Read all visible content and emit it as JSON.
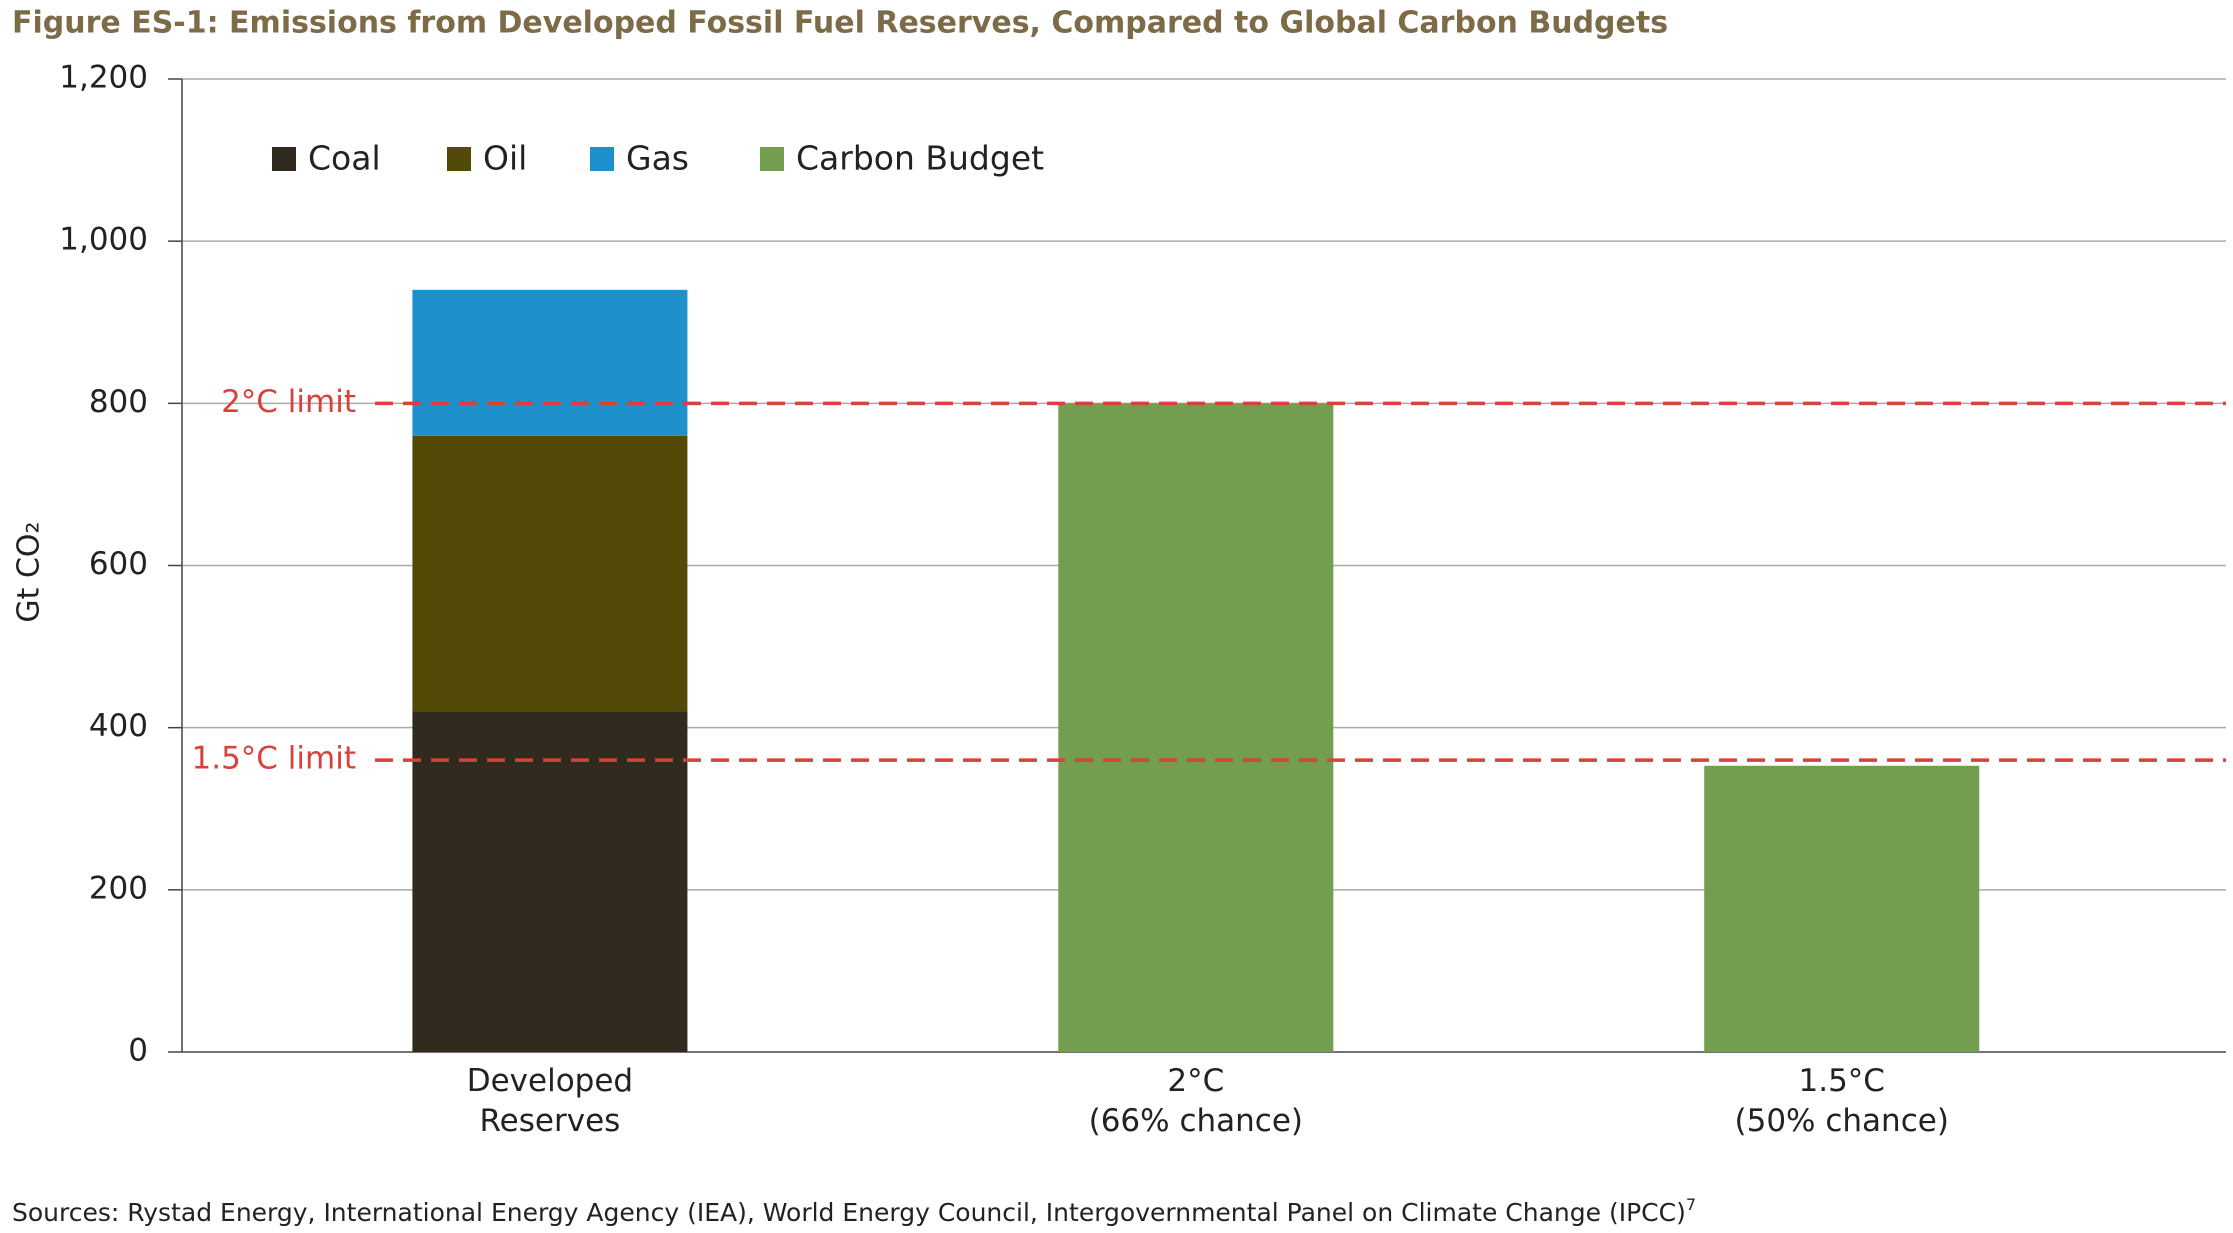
{
  "chart_data": {
    "type": "stacked_bar",
    "title": "Figure ES-1: Emissions from Developed Fossil Fuel Reserves, Compared to Global Carbon Budgets",
    "y_label": "Gt CO₂",
    "categories": [
      "Developed Reserves",
      "2°C (66% chance)",
      "1.5°C (50% chance)"
    ],
    "series": [
      {
        "name": "Coal",
        "color": "#312a1f",
        "values": [
          420,
          null,
          null
        ]
      },
      {
        "name": "Oil",
        "color": "#534a08",
        "values": [
          340,
          null,
          null
        ]
      },
      {
        "name": "Gas",
        "color": "#1e90cc",
        "values": [
          180,
          null,
          null
        ]
      },
      {
        "name": "Carbon Budget",
        "color": "#739d4f",
        "values": [
          null,
          800,
          353
        ]
      }
    ],
    "ylim": [
      0,
      1200
    ],
    "yticks": [
      0,
      200,
      400,
      600,
      800,
      {
        "value": 1000,
        "label": "1,000"
      },
      {
        "value": 1200,
        "label": "1,200"
      }
    ],
    "grid": true,
    "reference_lines": [
      {
        "label": "2°C limit",
        "value": 800,
        "color": "#d9413a"
      },
      {
        "label": "1.5°C limit",
        "value": 360,
        "color": "#d9413a"
      }
    ],
    "source": "Sources: Rystad Energy, International Energy Agency (IEA), World Energy Council, Intergovernmental Panel on Climate Change (IPCC)",
    "source_note": "7"
  }
}
